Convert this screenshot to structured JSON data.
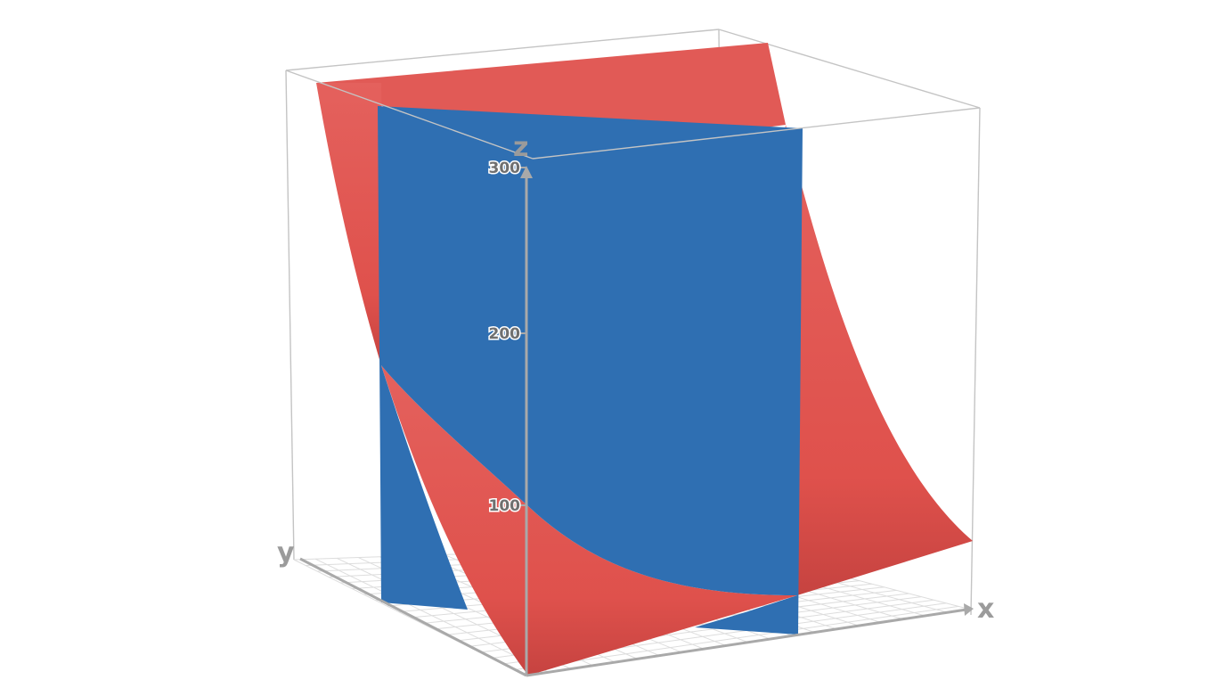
{
  "chart_data": {
    "type": "surface3d",
    "axes": {
      "x": {
        "label": "x"
      },
      "y": {
        "label": "y"
      },
      "z": {
        "label": "z",
        "ticks": [
          "100",
          "200",
          "300"
        ]
      }
    },
    "surfaces": [
      {
        "kind": "parabolic-cylinder",
        "color": "#e05550"
      },
      {
        "kind": "vertical-plane",
        "color": "#2f6fb2"
      }
    ],
    "box": true,
    "floor_grid": true
  }
}
